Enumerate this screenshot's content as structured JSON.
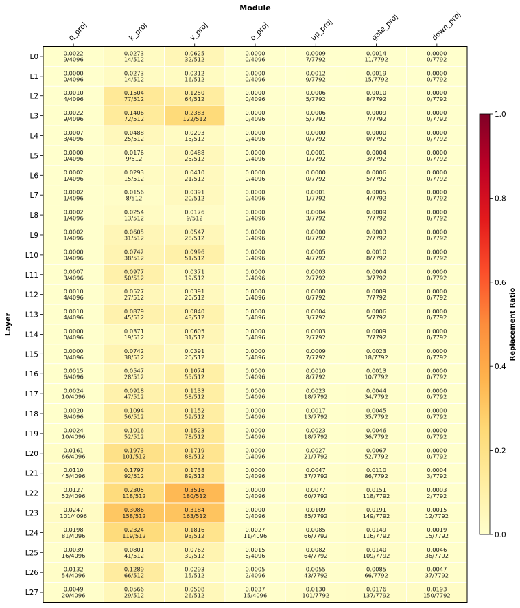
{
  "chart_data": {
    "type": "heatmap",
    "title": "Module",
    "xlabel": "",
    "ylabel": "Layer",
    "colorbar_label": "Replacement Ratio",
    "colorbar_ticks": [
      "0.0",
      "0.2",
      "0.4",
      "0.6",
      "0.8",
      "1.0"
    ],
    "vmin": 0.0,
    "vmax": 1.0,
    "colormap": "YlOrRd",
    "columns": [
      "q_proj",
      "k_proj",
      "v_proj",
      "o_proj",
      "up_proj",
      "gate_proj",
      "down_proj"
    ],
    "rows": [
      "L0",
      "L1",
      "L2",
      "L3",
      "L4",
      "L5",
      "L6",
      "L7",
      "L8",
      "L9",
      "L10",
      "L11",
      "L12",
      "L13",
      "L14",
      "L15",
      "L16",
      "L17",
      "L18",
      "L19",
      "L20",
      "L21",
      "L22",
      "L23",
      "L24",
      "L25",
      "L26",
      "L27"
    ],
    "values": [
      [
        "0.0022",
        "0.0273",
        "0.0625",
        "0.0000",
        "0.0009",
        "0.0014",
        "0.0000"
      ],
      [
        "0.0000",
        "0.0273",
        "0.0312",
        "0.0000",
        "0.0012",
        "0.0019",
        "0.0000"
      ],
      [
        "0.0010",
        "0.1504",
        "0.1250",
        "0.0000",
        "0.0006",
        "0.0010",
        "0.0000"
      ],
      [
        "0.0022",
        "0.1406",
        "0.2383",
        "0.0000",
        "0.0006",
        "0.0009",
        "0.0000"
      ],
      [
        "0.0007",
        "0.0488",
        "0.0293",
        "0.0000",
        "0.0000",
        "0.0000",
        "0.0000"
      ],
      [
        "0.0000",
        "0.0176",
        "0.0488",
        "0.0000",
        "0.0001",
        "0.0004",
        "0.0000"
      ],
      [
        "0.0002",
        "0.0293",
        "0.0410",
        "0.0000",
        "0.0000",
        "0.0006",
        "0.0000"
      ],
      [
        "0.0002",
        "0.0156",
        "0.0391",
        "0.0000",
        "0.0001",
        "0.0005",
        "0.0000"
      ],
      [
        "0.0002",
        "0.0254",
        "0.0176",
        "0.0000",
        "0.0004",
        "0.0009",
        "0.0000"
      ],
      [
        "0.0002",
        "0.0605",
        "0.0547",
        "0.0000",
        "0.0000",
        "0.0003",
        "0.0000"
      ],
      [
        "0.0000",
        "0.0742",
        "0.0996",
        "0.0000",
        "0.0005",
        "0.0010",
        "0.0000"
      ],
      [
        "0.0007",
        "0.0977",
        "0.0371",
        "0.0000",
        "0.0003",
        "0.0004",
        "0.0000"
      ],
      [
        "0.0010",
        "0.0527",
        "0.0391",
        "0.0000",
        "0.0000",
        "0.0009",
        "0.0000"
      ],
      [
        "0.0010",
        "0.0879",
        "0.0840",
        "0.0000",
        "0.0004",
        "0.0006",
        "0.0000"
      ],
      [
        "0.0000",
        "0.0371",
        "0.0605",
        "0.0000",
        "0.0003",
        "0.0009",
        "0.0000"
      ],
      [
        "0.0000",
        "0.0742",
        "0.0391",
        "0.0000",
        "0.0009",
        "0.0023",
        "0.0000"
      ],
      [
        "0.0015",
        "0.0547",
        "0.1074",
        "0.0000",
        "0.0010",
        "0.0013",
        "0.0000"
      ],
      [
        "0.0024",
        "0.0918",
        "0.1133",
        "0.0000",
        "0.0023",
        "0.0044",
        "0.0000"
      ],
      [
        "0.0020",
        "0.1094",
        "0.1152",
        "0.0000",
        "0.0017",
        "0.0045",
        "0.0000"
      ],
      [
        "0.0024",
        "0.1016",
        "0.1523",
        "0.0000",
        "0.0023",
        "0.0046",
        "0.0000"
      ],
      [
        "0.0161",
        "0.1973",
        "0.1719",
        "0.0000",
        "0.0027",
        "0.0067",
        "0.0000"
      ],
      [
        "0.0110",
        "0.1797",
        "0.1738",
        "0.0000",
        "0.0047",
        "0.0110",
        "0.0004"
      ],
      [
        "0.0127",
        "0.2305",
        "0.3516",
        "0.0000",
        "0.0077",
        "0.0151",
        "0.0003"
      ],
      [
        "0.0247",
        "0.3086",
        "0.3184",
        "0.0000",
        "0.0109",
        "0.0191",
        "0.0015"
      ],
      [
        "0.0198",
        "0.2324",
        "0.1816",
        "0.0027",
        "0.0085",
        "0.0149",
        "0.0019"
      ],
      [
        "0.0039",
        "0.0801",
        "0.0762",
        "0.0015",
        "0.0082",
        "0.0140",
        "0.0046"
      ],
      [
        "0.0132",
        "0.1289",
        "0.0293",
        "0.0005",
        "0.0055",
        "0.0085",
        "0.0047"
      ],
      [
        "0.0049",
        "0.0566",
        "0.0508",
        "0.0037",
        "0.0130",
        "0.0176",
        "0.0193"
      ]
    ],
    "counts": [
      [
        "9/4096",
        "14/512",
        "32/512",
        "0/4096",
        "7/7792",
        "11/7792",
        "0/7792"
      ],
      [
        "0/4096",
        "14/512",
        "16/512",
        "0/4096",
        "9/7792",
        "15/7792",
        "0/7792"
      ],
      [
        "4/4096",
        "77/512",
        "64/512",
        "0/4096",
        "5/7792",
        "8/7792",
        "0/7792"
      ],
      [
        "9/4096",
        "72/512",
        "122/512",
        "0/4096",
        "5/7792",
        "7/7792",
        "0/7792"
      ],
      [
        "3/4096",
        "25/512",
        "15/512",
        "0/4096",
        "0/7792",
        "0/7792",
        "0/7792"
      ],
      [
        "0/4096",
        "9/512",
        "25/512",
        "0/4096",
        "1/7792",
        "3/7792",
        "0/7792"
      ],
      [
        "1/4096",
        "15/512",
        "21/512",
        "0/4096",
        "0/7792",
        "5/7792",
        "0/7792"
      ],
      [
        "1/4096",
        "8/512",
        "20/512",
        "0/4096",
        "1/7792",
        "4/7792",
        "0/7792"
      ],
      [
        "1/4096",
        "13/512",
        "9/512",
        "0/4096",
        "3/7792",
        "7/7792",
        "0/7792"
      ],
      [
        "1/4096",
        "31/512",
        "28/512",
        "0/4096",
        "0/7792",
        "2/7792",
        "0/7792"
      ],
      [
        "0/4096",
        "38/512",
        "51/512",
        "0/4096",
        "4/7792",
        "8/7792",
        "0/7792"
      ],
      [
        "3/4096",
        "50/512",
        "19/512",
        "0/4096",
        "2/7792",
        "3/7792",
        "0/7792"
      ],
      [
        "4/4096",
        "27/512",
        "20/512",
        "0/4096",
        "0/7792",
        "7/7792",
        "0/7792"
      ],
      [
        "4/4096",
        "45/512",
        "43/512",
        "0/4096",
        "3/7792",
        "5/7792",
        "0/7792"
      ],
      [
        "0/4096",
        "19/512",
        "31/512",
        "0/4096",
        "2/7792",
        "7/7792",
        "0/7792"
      ],
      [
        "0/4096",
        "38/512",
        "20/512",
        "0/4096",
        "7/7792",
        "18/7792",
        "0/7792"
      ],
      [
        "6/4096",
        "28/512",
        "55/512",
        "0/4096",
        "8/7792",
        "10/7792",
        "0/7792"
      ],
      [
        "10/4096",
        "47/512",
        "58/512",
        "0/4096",
        "18/7792",
        "34/7792",
        "0/7792"
      ],
      [
        "8/4096",
        "56/512",
        "59/512",
        "0/4096",
        "13/7792",
        "35/7792",
        "0/7792"
      ],
      [
        "10/4096",
        "52/512",
        "78/512",
        "0/4096",
        "18/7792",
        "36/7792",
        "0/7792"
      ],
      [
        "66/4096",
        "101/512",
        "88/512",
        "0/4096",
        "21/7792",
        "52/7792",
        "0/7792"
      ],
      [
        "45/4096",
        "92/512",
        "89/512",
        "0/4096",
        "37/7792",
        "86/7792",
        "3/7792"
      ],
      [
        "52/4096",
        "118/512",
        "180/512",
        "0/4096",
        "60/7792",
        "118/7792",
        "2/7792"
      ],
      [
        "101/4096",
        "158/512",
        "163/512",
        "0/4096",
        "85/7792",
        "149/7792",
        "12/7792"
      ],
      [
        "81/4096",
        "119/512",
        "93/512",
        "11/4096",
        "66/7792",
        "116/7792",
        "15/7792"
      ],
      [
        "16/4096",
        "41/512",
        "39/512",
        "6/4096",
        "64/7792",
        "109/7792",
        "36/7792"
      ],
      [
        "54/4096",
        "66/512",
        "15/512",
        "2/4096",
        "43/7792",
        "66/7792",
        "37/7792"
      ],
      [
        "20/4096",
        "29/512",
        "26/512",
        "15/4096",
        "101/7792",
        "137/7792",
        "150/7792"
      ]
    ]
  }
}
